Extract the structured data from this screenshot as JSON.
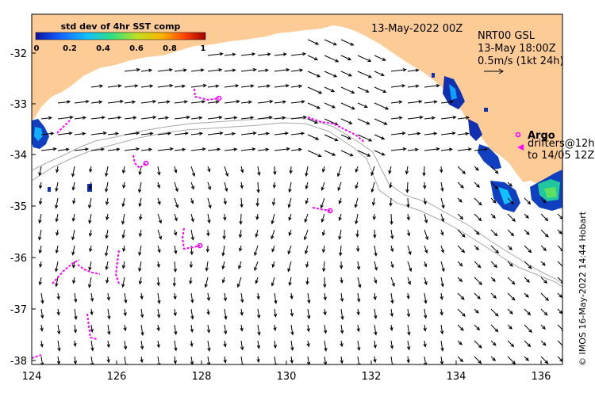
{
  "title_date": "13-May-2022 00Z",
  "colorbar": {
    "label": "std dev of 4hr SST comp",
    "ticks": [
      "0",
      "0.2",
      "0.4",
      "0.6",
      "0.8",
      "1"
    ],
    "colors": [
      "#1010a0",
      "#1060ff",
      "#10c0ff",
      "#30e080",
      "#c0e020",
      "#ffb000",
      "#ff4000",
      "#a00000"
    ]
  },
  "model_label": {
    "line1": "NRT00 GSL",
    "line2": "13-May 18:00Z",
    "line3": "0.5m/s (1kt 24h)"
  },
  "argo_label": "Argo",
  "drifters_label": {
    "line1": "drifters@12h",
    "line2": "to 14/05 12Z"
  },
  "credit": "© IMOS 16-May-2022 14:44 Hobart",
  "axes": {
    "x_ticks": [
      "124",
      "126",
      "128",
      "130",
      "132",
      "134",
      "136"
    ],
    "y_ticks": [
      "-32",
      "-33",
      "-34",
      "-35",
      "-36",
      "-37",
      "-38"
    ],
    "lon_range": [
      124,
      136.5
    ],
    "lat_range": [
      -38.1,
      -31.4
    ]
  },
  "colors": {
    "land": "#fdcb95",
    "ocean": "#ffffff",
    "arrow": "#000000",
    "drifter": "#ff00ff",
    "isobath": "#a8a8a8"
  }
}
